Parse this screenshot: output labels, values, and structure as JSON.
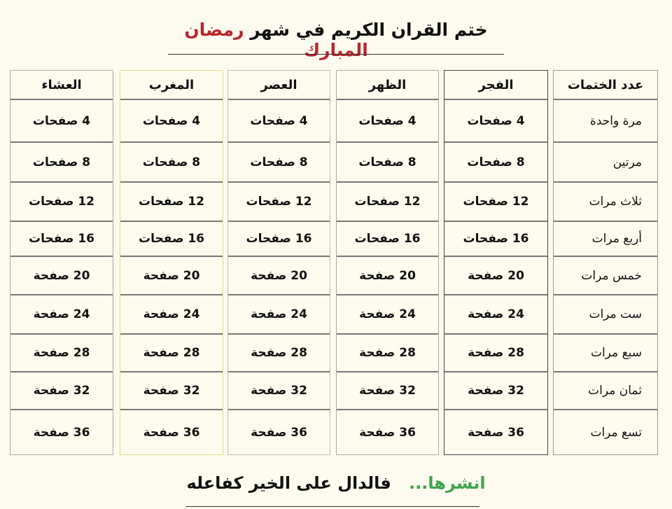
{
  "title": {
    "main": "ختم القران الكريم في شهر",
    "accent": "رمضان المبارك"
  },
  "colors": {
    "title_accent": "#b8262c",
    "footer_accent": "#3fa34d"
  },
  "table": {
    "columns": [
      {
        "header": "عدد الختمات",
        "border": "#999999",
        "cells": [
          "مرة واحدة",
          "مرتين",
          "ثلاث مرات",
          "أربع مرات",
          "خمس مرات",
          "ست مرات",
          "سبع مرات",
          "ثمان مرات",
          "تسع مرات"
        ]
      },
      {
        "header": "الفجر",
        "border": "#444444",
        "cells": [
          "4 صفحات",
          "8 صفحات",
          "12 صفحات",
          "16 صفحات",
          "20 صفحة",
          "24 صفحة",
          "28 صفحة",
          "32 صفحة",
          "36 صفحة"
        ]
      },
      {
        "header": "الظهر",
        "border": "#aaaaaa",
        "cells": [
          "4 صفحات",
          "8 صفحات",
          "12 صفحات",
          "16 صفحات",
          "20 صفحة",
          "24 صفحة",
          "28 صفحة",
          "32 صفحة",
          "36 صفحة"
        ]
      },
      {
        "header": "العصر",
        "border": "#b9c2b0",
        "cells": [
          "4 صفحات",
          "8 صفحات",
          "12 صفحات",
          "16 صفحات",
          "20 صفحة",
          "24 صفحة",
          "28 صفحة",
          "32 صفحة",
          "36 صفحة"
        ]
      },
      {
        "header": "المغرب",
        "border": "#e3d98a",
        "cells": [
          "4 صفحات",
          "8 صفحات",
          "12 صفحات",
          "16 صفحات",
          "20 صفحة",
          "24 صفحة",
          "28 صفحة",
          "32 صفحة",
          "36 صفحة"
        ]
      },
      {
        "header": "العشاء",
        "border": "#aaaaaa",
        "cells": [
          "4 صفحات",
          "8 صفحات",
          "12 صفحات",
          "16 صفحات",
          "20 صفحة",
          "24 صفحة",
          "28 صفحة",
          "32 صفحة",
          "36 صفحة"
        ]
      }
    ]
  },
  "footer": {
    "accent": "انشرها...",
    "main": "فالدال على الخير كفاعله"
  }
}
